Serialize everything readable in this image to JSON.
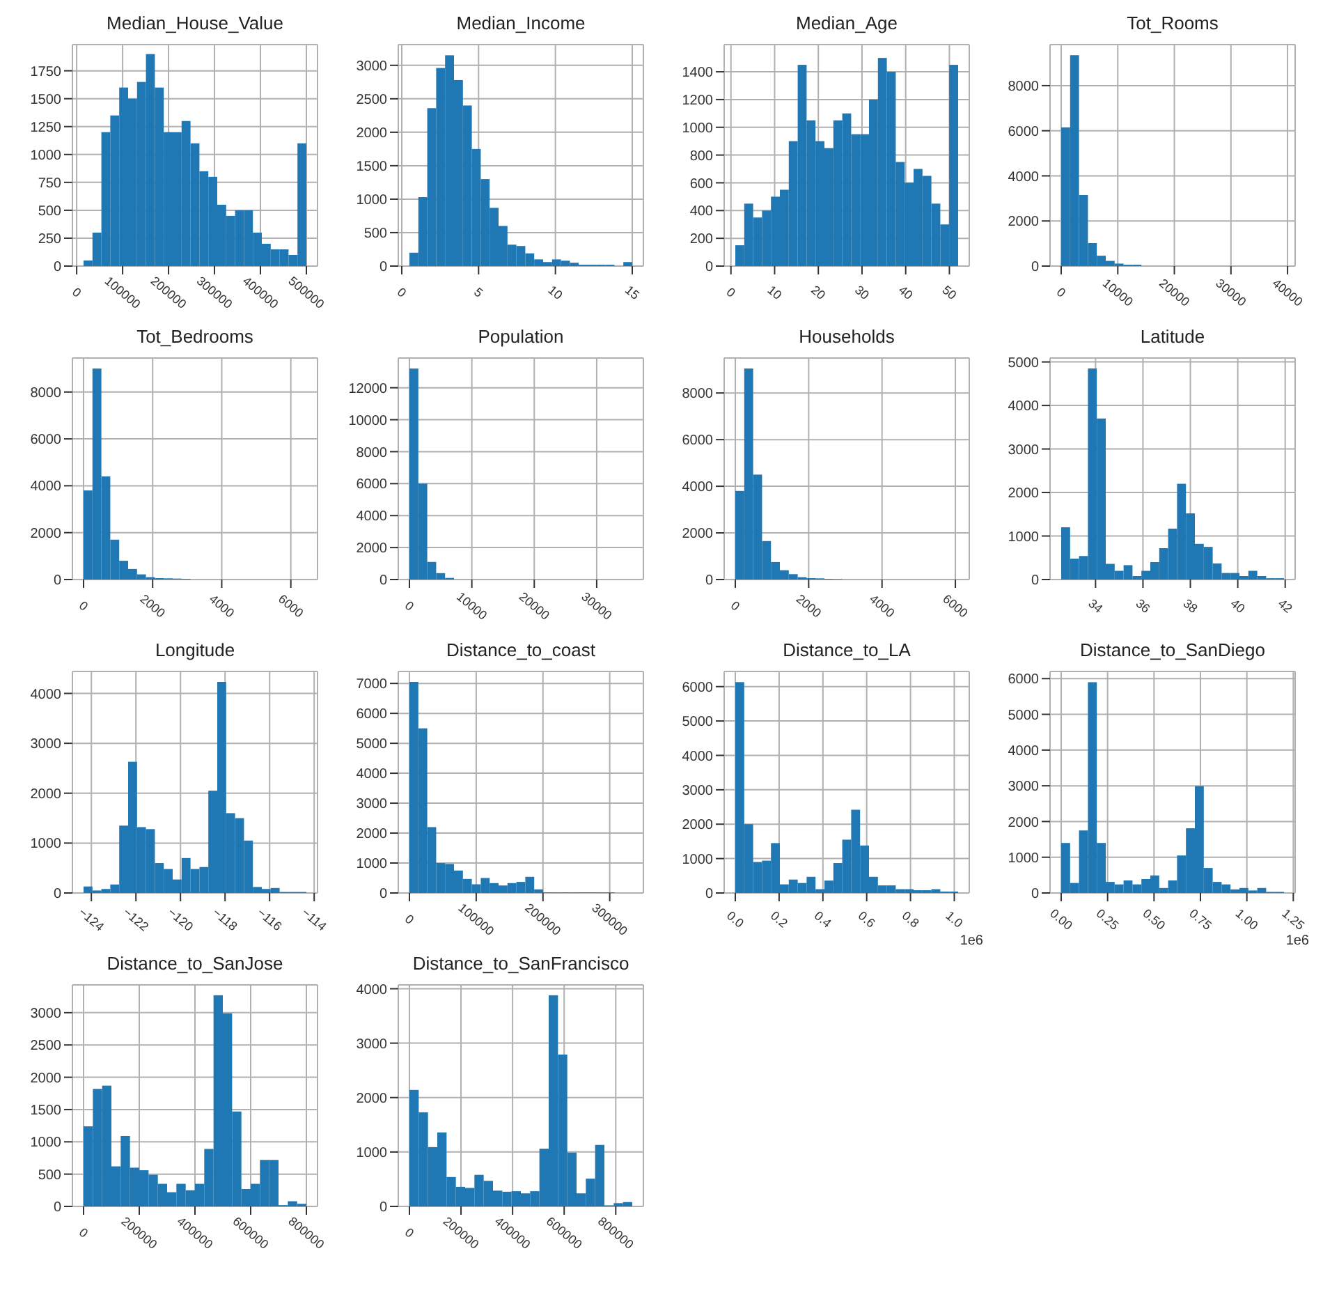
{
  "chart_data": [
    {
      "type": "histogram",
      "title": "Median_House_Value",
      "color": "#1f77b4",
      "grid": true,
      "bins": [
        15000,
        34400,
        53800,
        73200,
        92600,
        112000,
        131400,
        150800,
        170200,
        189600,
        209000,
        228400,
        247800,
        267200,
        286600,
        306000,
        325400,
        344800,
        364200,
        383600,
        403000,
        422400,
        441800,
        461200,
        480600,
        500000
      ],
      "values": [
        50,
        300,
        1200,
        1350,
        1600,
        1500,
        1650,
        1900,
        1600,
        1200,
        1200,
        1300,
        1100,
        850,
        800,
        550,
        450,
        500,
        500,
        300,
        200,
        150,
        150,
        100,
        1100
      ],
      "xlim": [
        -9250,
        524250
      ],
      "xticks": [
        0,
        100000,
        200000,
        300000,
        400000,
        500000
      ],
      "ylim": [
        0,
        1985
      ],
      "yticks": [
        0,
        250,
        500,
        750,
        1000,
        1250,
        1500,
        1750
      ]
    },
    {
      "type": "histogram",
      "title": "Median_Income",
      "color": "#1f77b4",
      "grid": true,
      "bins": [
        0.5,
        1.08,
        1.66,
        2.24,
        2.82,
        3.4,
        3.98,
        4.56,
        5.14,
        5.72,
        6.3,
        6.88,
        7.46,
        8.04,
        8.62,
        9.2,
        9.78,
        10.36,
        10.94,
        11.52,
        12.1,
        12.68,
        13.26,
        13.84,
        14.42,
        15.0
      ],
      "values": [
        200,
        1030,
        2360,
        2960,
        3150,
        2780,
        2400,
        1750,
        1300,
        870,
        600,
        320,
        300,
        190,
        100,
        60,
        100,
        80,
        50,
        20,
        20,
        20,
        20,
        0,
        60
      ],
      "xlim": [
        -0.225,
        15.725
      ],
      "xticks": [
        0,
        5,
        10,
        15
      ],
      "ylim": [
        0,
        3310
      ],
      "yticks": [
        0,
        500,
        1000,
        1500,
        2000,
        2500,
        3000
      ]
    },
    {
      "type": "histogram",
      "title": "Median_Age",
      "color": "#1f77b4",
      "grid": true,
      "bins": [
        1,
        3.04,
        5.08,
        7.12,
        9.16,
        11.2,
        13.24,
        15.28,
        17.32,
        19.36,
        21.4,
        23.44,
        25.48,
        27.52,
        29.56,
        31.6,
        33.64,
        35.68,
        37.72,
        39.76,
        41.8,
        43.84,
        45.88,
        47.92,
        49.96,
        52
      ],
      "values": [
        150,
        450,
        350,
        400,
        500,
        550,
        900,
        1450,
        1050,
        900,
        850,
        1050,
        1100,
        950,
        950,
        1200,
        1500,
        1400,
        750,
        600,
        700,
        650,
        450,
        300,
        1450
      ],
      "xlim": [
        -1.55,
        54.55
      ],
      "xticks": [
        0,
        10,
        20,
        30,
        40,
        50
      ],
      "ylim": [
        0,
        1596
      ],
      "yticks": [
        0,
        200,
        400,
        600,
        800,
        1000,
        1200,
        1400
      ]
    },
    {
      "type": "histogram",
      "title": "Tot_Rooms",
      "color": "#1f77b4",
      "grid": true,
      "bins": [
        0,
        1575,
        3150,
        4725,
        6300,
        7875,
        9450,
        11025,
        12600,
        14175,
        15750,
        17325,
        18900,
        20475,
        22050,
        23625,
        25200,
        26775,
        28350,
        29925,
        31500,
        33075,
        34650,
        36225,
        37800,
        39375
      ],
      "values": [
        6150,
        9350,
        3150,
        1020,
        460,
        230,
        110,
        60,
        60,
        0,
        0,
        0,
        0,
        0,
        0,
        0,
        0,
        0,
        0,
        0,
        0,
        0,
        0,
        0,
        0
      ],
      "xlim": [
        -1969,
        41344
      ],
      "xticks": [
        0,
        10000,
        20000,
        30000,
        40000
      ],
      "ylim": [
        0,
        9820
      ],
      "yticks": [
        0,
        2000,
        4000,
        6000,
        8000
      ]
    },
    {
      "type": "histogram",
      "title": "Tot_Bedrooms",
      "color": "#1f77b4",
      "grid": true,
      "bins": [
        0,
        258,
        516,
        774,
        1032,
        1290,
        1548,
        1806,
        2064,
        2322,
        2580,
        2838,
        3096,
        3354,
        3612,
        3870,
        4128,
        4386,
        4644,
        4902,
        5160,
        5418,
        5676,
        5934,
        6192,
        6450
      ],
      "values": [
        3800,
        9000,
        4400,
        1700,
        800,
        450,
        220,
        100,
        60,
        50,
        40,
        30,
        0,
        0,
        0,
        0,
        0,
        0,
        0,
        0,
        0,
        0,
        0,
        0,
        0
      ],
      "xlim": [
        -322,
        6772
      ],
      "xticks": [
        0,
        2000,
        4000,
        6000
      ],
      "ylim": [
        0,
        9450
      ],
      "yticks": [
        0,
        2000,
        4000,
        6000,
        8000
      ]
    },
    {
      "type": "histogram",
      "title": "Population",
      "color": "#1f77b4",
      "grid": true,
      "bins": [
        0,
        1428,
        2856,
        4284,
        5712,
        7140,
        8568,
        9996,
        11424,
        12852,
        14280,
        15708,
        17136,
        18564,
        19992,
        21420,
        22848,
        24276,
        25704,
        27132,
        28560,
        29988,
        31416,
        32844,
        34272,
        35700
      ],
      "values": [
        13200,
        6000,
        1100,
        400,
        100,
        0,
        0,
        0,
        0,
        0,
        0,
        0,
        0,
        0,
        0,
        0,
        0,
        0,
        0,
        0,
        0,
        0,
        0,
        0,
        0
      ],
      "xlim": [
        -1785,
        37485
      ],
      "xticks": [
        0,
        10000,
        20000,
        30000
      ],
      "ylim": [
        0,
        13860
      ],
      "yticks": [
        0,
        2000,
        4000,
        6000,
        8000,
        10000,
        12000
      ]
    },
    {
      "type": "histogram",
      "title": "Households",
      "color": "#1f77b4",
      "grid": true,
      "bins": [
        0,
        243,
        486,
        729,
        972,
        1215,
        1458,
        1701,
        1944,
        2187,
        2430,
        2673,
        2916,
        3159,
        3402,
        3645,
        3888,
        4131,
        4374,
        4617,
        4860,
        5103,
        5346,
        5589,
        5832,
        6075
      ],
      "values": [
        3800,
        9050,
        4500,
        1650,
        750,
        400,
        230,
        100,
        60,
        50,
        30,
        20,
        0,
        0,
        0,
        0,
        0,
        0,
        0,
        0,
        0,
        0,
        0,
        0,
        0
      ],
      "xlim": [
        -304,
        6379
      ],
      "xticks": [
        0,
        2000,
        4000,
        6000
      ],
      "ylim": [
        0,
        9500
      ],
      "yticks": [
        0,
        2000,
        4000,
        6000,
        8000
      ]
    },
    {
      "type": "histogram",
      "title": "Latitude",
      "color": "#1f77b4",
      "grid": true,
      "bins": [
        32.55,
        32.926,
        33.302,
        33.678,
        34.054,
        34.43,
        34.806,
        35.182,
        35.558,
        35.934,
        36.31,
        36.686,
        37.062,
        37.438,
        37.814,
        38.19,
        38.566,
        38.942,
        39.318,
        39.694,
        40.07,
        40.446,
        40.822,
        41.198,
        41.574,
        41.95
      ],
      "values": [
        1200,
        480,
        540,
        4850,
        3700,
        360,
        200,
        330,
        80,
        200,
        400,
        720,
        1170,
        2200,
        1520,
        820,
        750,
        370,
        150,
        150,
        80,
        200,
        80,
        30,
        30
      ],
      "xlim": [
        32.08,
        42.42
      ],
      "xticks": [
        34,
        36,
        38,
        40,
        42
      ],
      "ylim": [
        0,
        5090
      ],
      "yticks": [
        0,
        1000,
        2000,
        3000,
        4000,
        5000
      ]
    },
    {
      "type": "histogram",
      "title": "Longitude",
      "color": "#1f77b4",
      "grid": true,
      "bins": [
        -124.35,
        -123.95,
        -123.55,
        -123.15,
        -122.75,
        -122.35,
        -121.95,
        -121.55,
        -121.15,
        -120.75,
        -120.35,
        -119.95,
        -119.55,
        -119.15,
        -118.75,
        -118.35,
        -117.95,
        -117.55,
        -117.15,
        -116.75,
        -116.35,
        -115.95,
        -115.55,
        -115.15,
        -114.75,
        -114.35
      ],
      "values": [
        130,
        50,
        80,
        170,
        1350,
        2630,
        1320,
        1280,
        600,
        480,
        270,
        700,
        480,
        520,
        2050,
        4230,
        1600,
        1500,
        1050,
        120,
        80,
        100,
        20,
        20,
        20
      ],
      "xlim": [
        -124.85,
        -113.85
      ],
      "xticks": [
        {
          "value": -124,
          "label": "−124"
        },
        {
          "value": -122,
          "label": "−122"
        },
        {
          "value": -120,
          "label": "−120"
        },
        {
          "value": -118,
          "label": "−118"
        },
        {
          "value": -116,
          "label": "−116"
        },
        {
          "value": -114,
          "label": "−114"
        }
      ],
      "ylim": [
        0,
        4440
      ],
      "yticks": [
        0,
        1000,
        2000,
        3000,
        4000
      ]
    },
    {
      "type": "histogram",
      "title": "Distance_to_coast",
      "color": "#1f77b4",
      "grid": true,
      "bins": [
        0,
        13350,
        26700,
        40050,
        53400,
        66750,
        80100,
        93450,
        106800,
        120150,
        133500,
        146850,
        160200,
        173550,
        186900,
        200250,
        213600,
        226950,
        240300,
        253650,
        267000,
        280350,
        293700,
        307050,
        320400,
        333750
      ],
      "values": [
        7050,
        5500,
        2200,
        1000,
        970,
        750,
        470,
        290,
        500,
        330,
        250,
        330,
        370,
        540,
        120,
        20,
        20,
        20,
        20,
        20,
        20,
        20,
        20,
        0,
        0
      ],
      "xlim": [
        -16690,
        350440
      ],
      "xticks": [
        0,
        100000,
        200000,
        300000
      ],
      "ylim": [
        0,
        7400
      ],
      "yticks": [
        0,
        1000,
        2000,
        3000,
        4000,
        5000,
        6000,
        7000
      ]
    },
    {
      "type": "histogram",
      "title": "Distance_to_LA",
      "color": "#1f77b4",
      "grid": true,
      "bins": [
        0,
        0.0407,
        0.0814,
        0.1221,
        0.1628,
        0.2035,
        0.2442,
        0.2849,
        0.3256,
        0.3663,
        0.407,
        0.4477,
        0.4884,
        0.5291,
        0.5698,
        0.6105,
        0.6512,
        0.6919,
        0.7326,
        0.7733,
        0.814,
        0.8547,
        0.8954,
        0.9361,
        0.9768,
        1.0175
      ],
      "values": [
        6130,
        2000,
        900,
        940,
        1450,
        250,
        390,
        290,
        470,
        110,
        360,
        870,
        1550,
        2420,
        1380,
        470,
        220,
        220,
        110,
        110,
        80,
        80,
        110,
        40,
        40
      ],
      "xlim": [
        -0.0509,
        1.0684
      ],
      "xticks": [
        {
          "value": 0,
          "label": "0.0"
        },
        {
          "value": 0.2,
          "label": "0.2"
        },
        {
          "value": 0.4,
          "label": "0.4"
        },
        {
          "value": 0.6,
          "label": "0.6"
        },
        {
          "value": 0.8,
          "label": "0.8"
        },
        {
          "value": 1,
          "label": "1.0"
        }
      ],
      "ylim": [
        0,
        6440
      ],
      "yticks": [
        0,
        1000,
        2000,
        3000,
        4000,
        5000,
        6000
      ],
      "annotations": [
        "1e6"
      ]
    },
    {
      "type": "histogram",
      "title": "Distance_to_SanDiego",
      "color": "#1f77b4",
      "grid": true,
      "bins": [
        0,
        0.048,
        0.096,
        0.144,
        0.192,
        0.24,
        0.288,
        0.336,
        0.384,
        0.432,
        0.48,
        0.528,
        0.576,
        0.624,
        0.672,
        0.72,
        0.768,
        0.816,
        0.864,
        0.912,
        0.96,
        1.008,
        1.056,
        1.104,
        1.152,
        1.2
      ],
      "values": [
        1400,
        280,
        1750,
        5900,
        1400,
        310,
        240,
        350,
        240,
        390,
        490,
        140,
        350,
        1050,
        1810,
        2990,
        700,
        310,
        240,
        100,
        140,
        70,
        140,
        30,
        30
      ],
      "xlim": [
        -0.06,
        1.26
      ],
      "xticks": [
        {
          "value": 0,
          "label": "0.00"
        },
        {
          "value": 0.25,
          "label": "0.25"
        },
        {
          "value": 0.5,
          "label": "0.50"
        },
        {
          "value": 0.75,
          "label": "0.75"
        },
        {
          "value": 1,
          "label": "1.00"
        },
        {
          "value": 1.25,
          "label": "1.25"
        }
      ],
      "ylim": [
        0,
        6200
      ],
      "yticks": [
        0,
        1000,
        2000,
        3000,
        4000,
        5000,
        6000
      ],
      "annotations": [
        "1e6"
      ]
    },
    {
      "type": "histogram",
      "title": "Distance_to_SanJose",
      "color": "#1f77b4",
      "grid": true,
      "bins": [
        0,
        33333,
        66667,
        100000,
        133333,
        166667,
        200000,
        233333,
        266667,
        300000,
        333333,
        366667,
        400000,
        433333,
        466667,
        500000,
        533333,
        566667,
        600000,
        633333,
        666667,
        700000,
        733333,
        766667,
        800000
      ],
      "values": [
        1240,
        1820,
        1870,
        620,
        1090,
        600,
        560,
        490,
        350,
        220,
        350,
        250,
        350,
        890,
        3270,
        2990,
        1470,
        270,
        350,
        720,
        720,
        20,
        80,
        40
      ],
      "xlim": [
        -40000,
        840000
      ],
      "xticks": [
        0,
        200000,
        400000,
        600000,
        800000
      ],
      "ylim": [
        0,
        3430
      ],
      "yticks": [
        0,
        500,
        1000,
        1500,
        2000,
        2500,
        3000
      ]
    },
    {
      "type": "histogram",
      "title": "Distance_to_SanFrancisco",
      "color": "#1f77b4",
      "grid": true,
      "bins": [
        0,
        36000,
        72000,
        108000,
        144000,
        180000,
        216000,
        252000,
        288000,
        324000,
        360000,
        396000,
        432000,
        468000,
        504000,
        540000,
        576000,
        612000,
        648000,
        684000,
        720000,
        756000,
        792000,
        828000,
        864000
      ],
      "values": [
        2140,
        1730,
        1090,
        1360,
        540,
        360,
        340,
        580,
        470,
        290,
        270,
        280,
        240,
        280,
        1060,
        3880,
        2790,
        990,
        240,
        510,
        1130,
        20,
        60,
        80
      ],
      "xlim": [
        -43200,
        907200
      ],
      "xticks": [
        0,
        200000,
        400000,
        600000,
        800000
      ],
      "ylim": [
        0,
        4070
      ],
      "yticks": [
        0,
        1000,
        2000,
        3000,
        4000
      ]
    }
  ]
}
